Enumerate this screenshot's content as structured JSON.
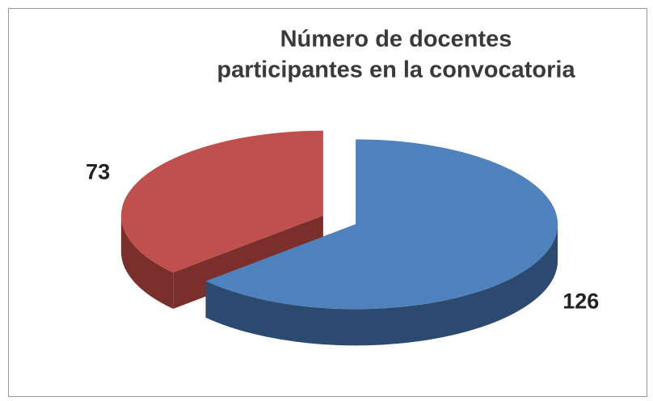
{
  "chart_data": {
    "type": "pie3d",
    "title": [
      "Número de docentes",
      "participantes en la convocatoria"
    ],
    "categories": [
      null,
      null
    ],
    "values": [
      126,
      73
    ],
    "colors": [
      "#4f81bd",
      "#c0504d"
    ],
    "side_colors": [
      "#2c4a70",
      "#7b2f2c"
    ]
  }
}
